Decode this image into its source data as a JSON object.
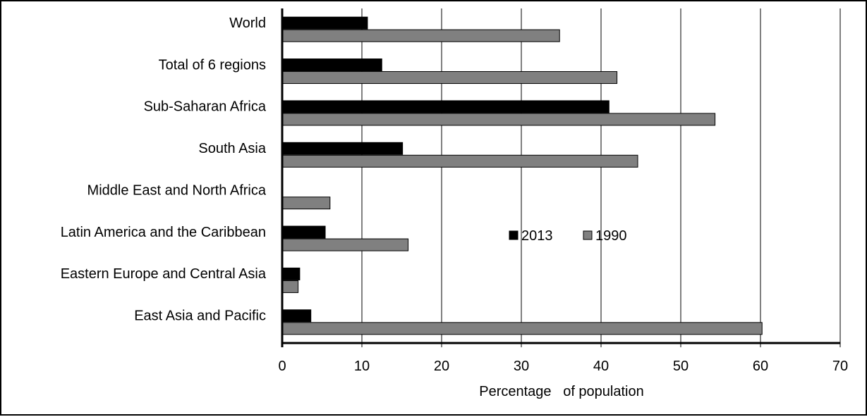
{
  "chart_data": {
    "type": "bar",
    "orientation": "horizontal",
    "title": "",
    "xlabel": "Percentage   of population",
    "ylabel": "",
    "xlim": [
      0,
      70
    ],
    "xticks": [
      0,
      10,
      20,
      30,
      40,
      50,
      60,
      70
    ],
    "grid": "vertical",
    "legend_position": "center-right",
    "categories": [
      "World",
      "Total of 6 regions",
      "Sub-Saharan Africa",
      "South Asia",
      "Middle East and North Africa",
      "Latin America and the Caribbean",
      "Eastern Europe and Central Asia",
      "East Asia and Pacific"
    ],
    "series": [
      {
        "name": "2013",
        "color": "#000000",
        "values": [
          10.7,
          12.5,
          41.0,
          15.1,
          null,
          5.4,
          2.2,
          3.6
        ]
      },
      {
        "name": "1990",
        "color": "#808080",
        "values": [
          34.8,
          42.0,
          54.3,
          44.6,
          6.0,
          15.8,
          2.0,
          60.2
        ]
      }
    ]
  }
}
